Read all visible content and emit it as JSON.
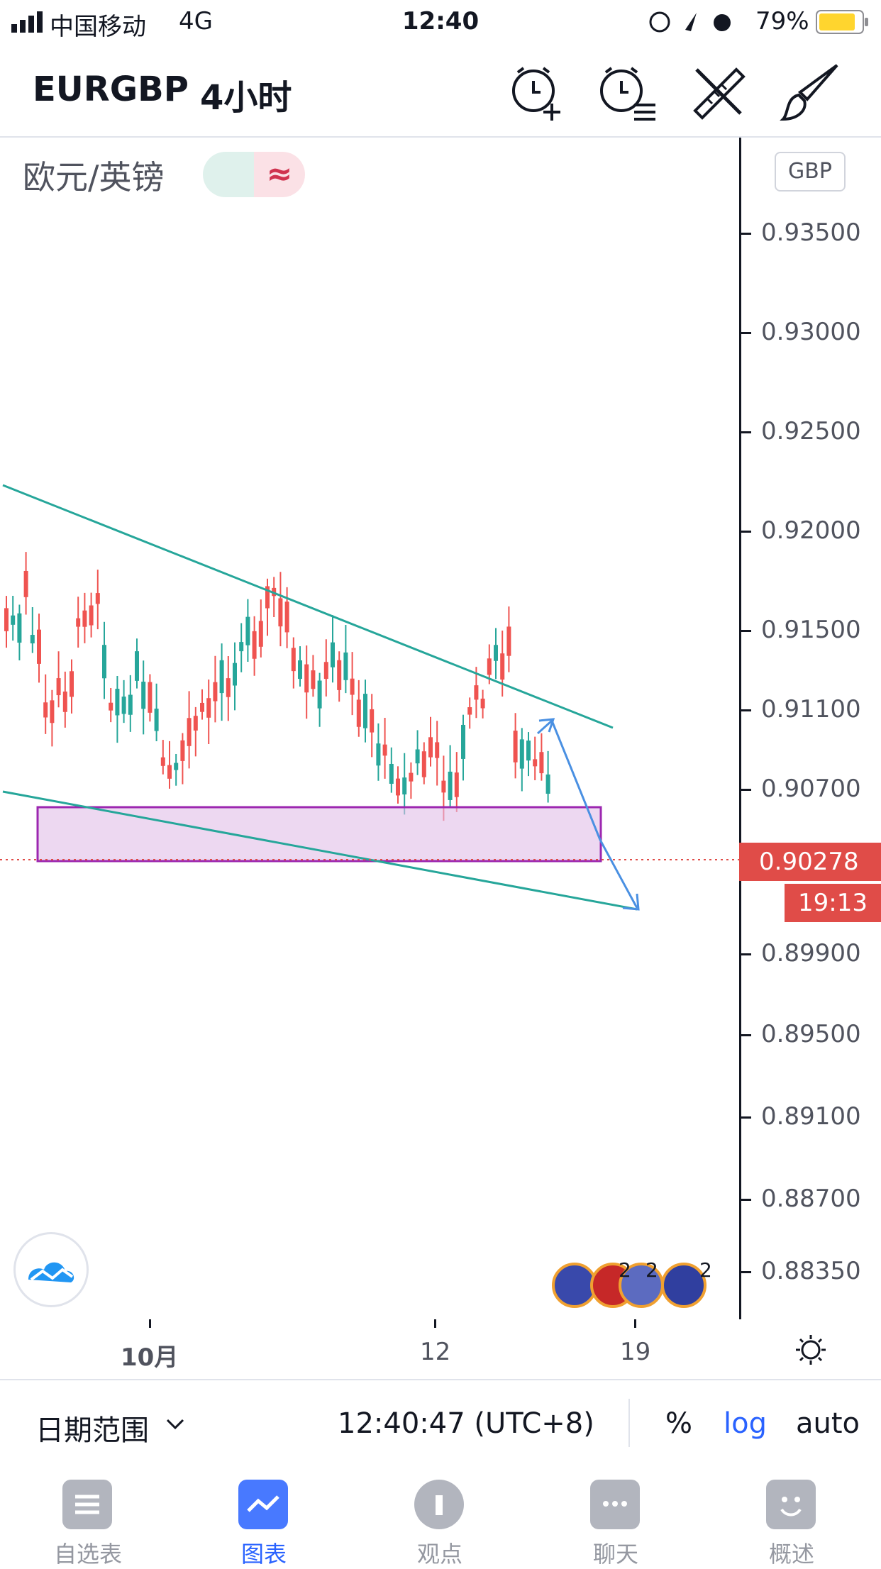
{
  "status": {
    "carrier": "中国移动",
    "network": "4G",
    "time": "12:40",
    "battery": "79%"
  },
  "header": {
    "symbol": "EURGBP",
    "interval": "4小时",
    "buttons": [
      "alarm-add-icon",
      "alarm-list-icon",
      "tools-icon",
      "brush-icon"
    ]
  },
  "chart": {
    "pair_name": "欧元/英镑",
    "toggle_symbol": "≈",
    "currency": "GBP",
    "price_labels": [
      "0.93500",
      "0.93000",
      "0.92500",
      "0.92000",
      "0.91500",
      "0.91100",
      "0.90700",
      "0.89900",
      "0.89500",
      "0.89100",
      "0.88700",
      "0.88350"
    ],
    "current_price": "0.90278",
    "countdown": "19:13",
    "x_labels": [
      "10月",
      "12",
      "19"
    ],
    "event_badges": [
      "2",
      "2",
      "2"
    ],
    "colors": {
      "up": "#26a69a",
      "down": "#ef5350",
      "trend": "#26a69a",
      "zone": "#9c27b0",
      "projection": "#2196f3",
      "price": "#e04c48"
    }
  },
  "bottom": {
    "range_label": "日期范围",
    "clock": "12:40:47 (UTC+8)",
    "percent": "%",
    "log": "log",
    "auto": "auto"
  },
  "tabs": [
    {
      "label": "自选表",
      "icon": "watchlist-icon"
    },
    {
      "label": "图表",
      "icon": "chart-icon",
      "active": true
    },
    {
      "label": "观点",
      "icon": "ideas-icon"
    },
    {
      "label": "聊天",
      "icon": "chat-icon"
    },
    {
      "label": "概述",
      "icon": "overview-icon"
    }
  ]
}
